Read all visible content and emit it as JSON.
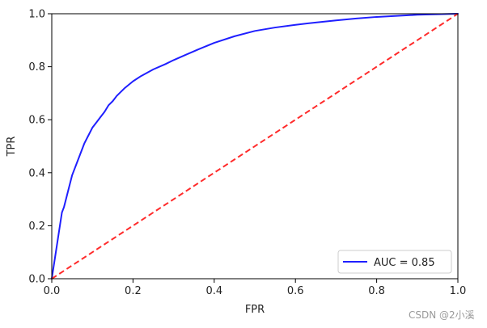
{
  "chart_data": {
    "type": "line",
    "xlabel": "FPR",
    "ylabel": "TPR",
    "xlim": [
      0.0,
      1.0
    ],
    "ylim": [
      0.0,
      1.0
    ],
    "x_ticks": [
      "0.0",
      "0.2",
      "0.4",
      "0.6",
      "0.8",
      "1.0"
    ],
    "y_ticks": [
      "0.0",
      "0.2",
      "0.4",
      "0.6",
      "0.8",
      "1.0"
    ],
    "grid": false,
    "legend_position": "lower-right",
    "series": [
      {
        "name": "AUC = 0.85",
        "color": "#1f1fff",
        "style": "solid",
        "x": [
          0.0,
          0.005,
          0.01,
          0.015,
          0.02,
          0.025,
          0.03,
          0.035,
          0.04,
          0.05,
          0.06,
          0.07,
          0.08,
          0.09,
          0.1,
          0.11,
          0.12,
          0.13,
          0.14,
          0.15,
          0.16,
          0.18,
          0.2,
          0.22,
          0.25,
          0.28,
          0.3,
          0.33,
          0.36,
          0.4,
          0.45,
          0.5,
          0.55,
          0.6,
          0.65,
          0.7,
          0.75,
          0.8,
          0.85,
          0.9,
          0.95,
          1.0
        ],
        "y": [
          0.0,
          0.05,
          0.1,
          0.15,
          0.2,
          0.25,
          0.27,
          0.3,
          0.33,
          0.39,
          0.43,
          0.47,
          0.51,
          0.54,
          0.57,
          0.59,
          0.61,
          0.63,
          0.655,
          0.67,
          0.69,
          0.72,
          0.745,
          0.765,
          0.79,
          0.81,
          0.825,
          0.845,
          0.865,
          0.89,
          0.915,
          0.935,
          0.948,
          0.958,
          0.967,
          0.975,
          0.982,
          0.988,
          0.992,
          0.996,
          0.998,
          1.0
        ]
      },
      {
        "name": "",
        "color": "#ff2b2b",
        "style": "dashed",
        "x": [
          0.0,
          1.0
        ],
        "y": [
          0.0,
          1.0
        ]
      }
    ]
  },
  "watermark": "CSDN @2小溪"
}
